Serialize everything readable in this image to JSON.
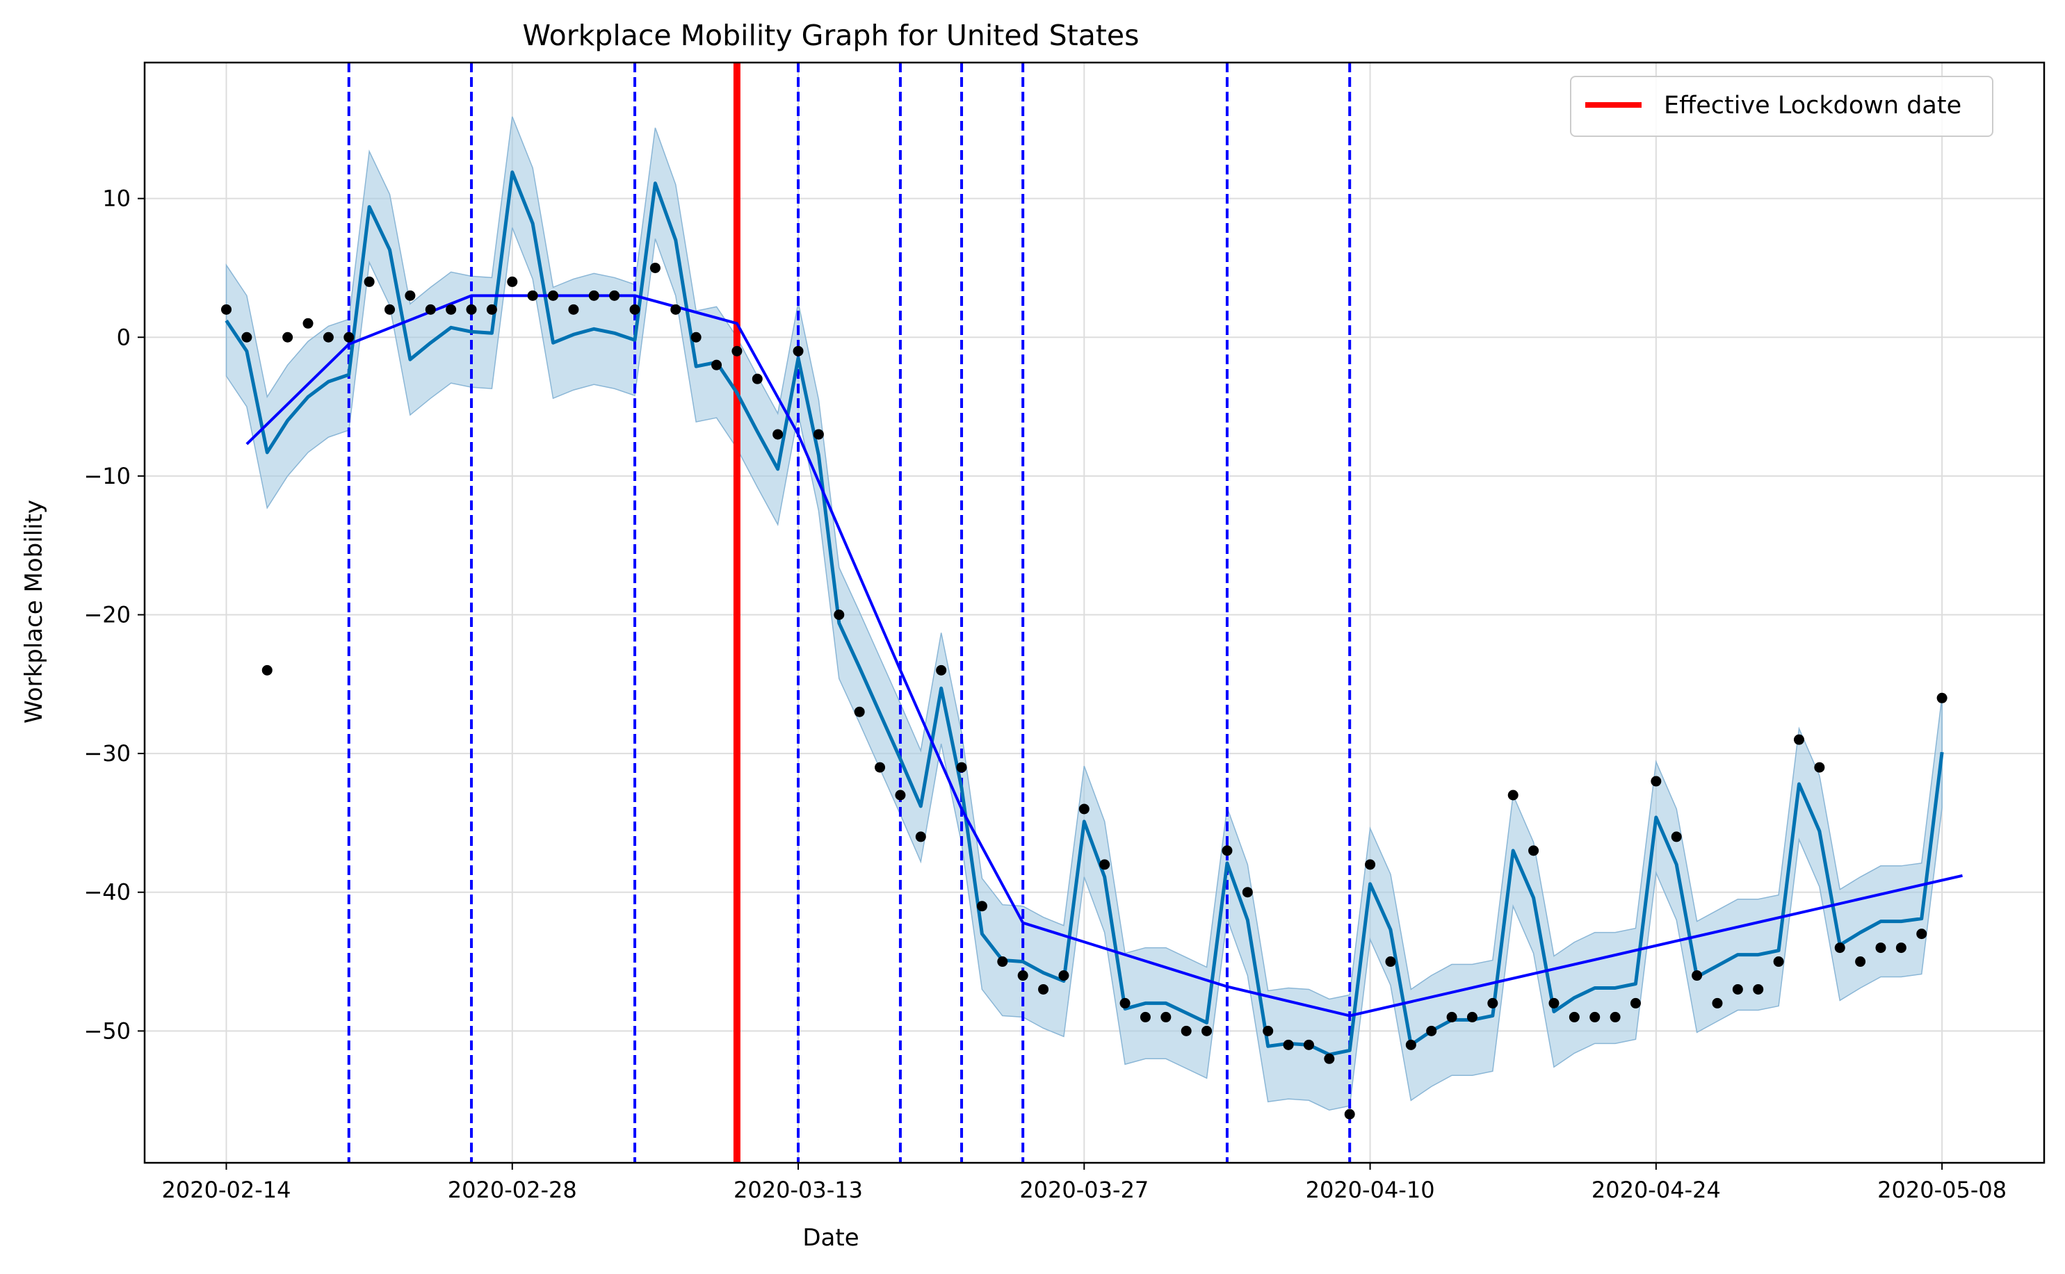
{
  "chart_data": {
    "type": "line",
    "title": "Workplace Mobility Graph for United States",
    "xlabel": "Date",
    "ylabel": "Workplace Mobility",
    "x_start": "2020-02-14",
    "x_ticks": [
      "2020-02-14",
      "2020-02-28",
      "2020-03-13",
      "2020-03-27",
      "2020-04-10",
      "2020-04-24",
      "2020-05-08"
    ],
    "x_range": [
      "2020-02-10",
      "2020-05-13"
    ],
    "y_ticks": [
      10,
      0,
      -10,
      -20,
      -30,
      -40,
      -50
    ],
    "ylim": [
      -59.5,
      19.8
    ],
    "grid": true,
    "legend": {
      "position": "top-right",
      "entries": [
        {
          "label": "Effective Lockdown date",
          "color": "#ff0000"
        }
      ]
    },
    "colors": {
      "observed": "#000000",
      "forecast": "#0072b2",
      "band": "#a6cbe3",
      "trend": "#0000ff",
      "changepoints": "#0000ff",
      "lockdown": "#ff0000"
    },
    "lockdown_date": "2020-03-10",
    "changepoints": [
      "2020-02-20",
      "2020-02-26",
      "2020-03-05",
      "2020-03-13",
      "2020-03-18",
      "2020-03-21",
      "2020-03-24",
      "2020-04-03",
      "2020-04-09"
    ],
    "series": [
      {
        "name": "observed",
        "style": "points",
        "y": [
          2,
          0,
          -24,
          0,
          1,
          0,
          0,
          4,
          2,
          3,
          2,
          2,
          2,
          2,
          4,
          3,
          3,
          2,
          3,
          3,
          2,
          5,
          2,
          0,
          -2,
          -1,
          -3,
          -7,
          -1,
          -7,
          -20,
          -27,
          -31,
          -33,
          -36,
          -24,
          -31,
          -41,
          -45,
          -46,
          -47,
          -46,
          -34,
          -38,
          -48,
          -49,
          -49,
          -50,
          -50,
          -37,
          -40,
          -50,
          -51,
          -51,
          -52,
          -56,
          -38,
          -45,
          -51,
          -50,
          -49,
          -49,
          -48,
          -33,
          -37,
          -48,
          -49,
          -49,
          -49,
          -48,
          -32,
          -36,
          -46,
          -48,
          -47,
          -47,
          -45,
          -29,
          -31,
          -44,
          -45,
          -44,
          -44,
          -43,
          -26
        ]
      },
      {
        "name": "forecast",
        "style": "line",
        "y": [
          1.2,
          -1.0,
          -8.3,
          -6.0,
          -4.3,
          -3.2,
          -2.7,
          9.4,
          6.3,
          -1.6,
          -0.4,
          0.7,
          0.4,
          0.3,
          11.9,
          8.2,
          -0.4,
          0.2,
          0.6,
          0.3,
          -0.2,
          11.1,
          7.0,
          -2.1,
          -1.8,
          -4.0,
          -6.8,
          -9.5,
          -1.5,
          -8.5,
          -20.6,
          -23.8,
          -27.1,
          -30.4,
          -33.8,
          -25.3,
          -32.5,
          -43.0,
          -44.9,
          -45.0,
          -45.8,
          -46.4,
          -34.9,
          -38.9,
          -48.4,
          -48.0,
          -48.0,
          -48.7,
          -49.4,
          -37.9,
          -42.0,
          -51.1,
          -50.9,
          -51.0,
          -51.7,
          -51.4,
          -39.4,
          -42.7,
          -51.0,
          -50.0,
          -49.2,
          -49.2,
          -48.9,
          -37.0,
          -40.4,
          -48.6,
          -47.6,
          -46.9,
          -46.9,
          -46.6,
          -34.6,
          -38.0,
          -46.1,
          -45.3,
          -44.5,
          -44.5,
          -44.2,
          -32.2,
          -35.6,
          -43.8,
          -42.9,
          -42.1,
          -42.1,
          -41.9,
          -29.9
        ]
      },
      {
        "name": "trend",
        "style": "line",
        "points": [
          [
            "2020-02-15",
            -7.7
          ],
          [
            "2020-02-20",
            -0.5
          ],
          [
            "2020-02-26",
            3.0
          ],
          [
            "2020-03-05",
            3.0
          ],
          [
            "2020-03-10",
            1.0
          ],
          [
            "2020-03-13",
            -7.0
          ],
          [
            "2020-03-18",
            -24.0
          ],
          [
            "2020-03-21",
            -34.0
          ],
          [
            "2020-03-24",
            -42.2
          ],
          [
            "2020-04-03",
            -46.8
          ],
          [
            "2020-04-09",
            -48.9
          ],
          [
            "2020-05-09",
            -38.8
          ]
        ]
      }
    ],
    "band_halfwidth": 4.0
  }
}
